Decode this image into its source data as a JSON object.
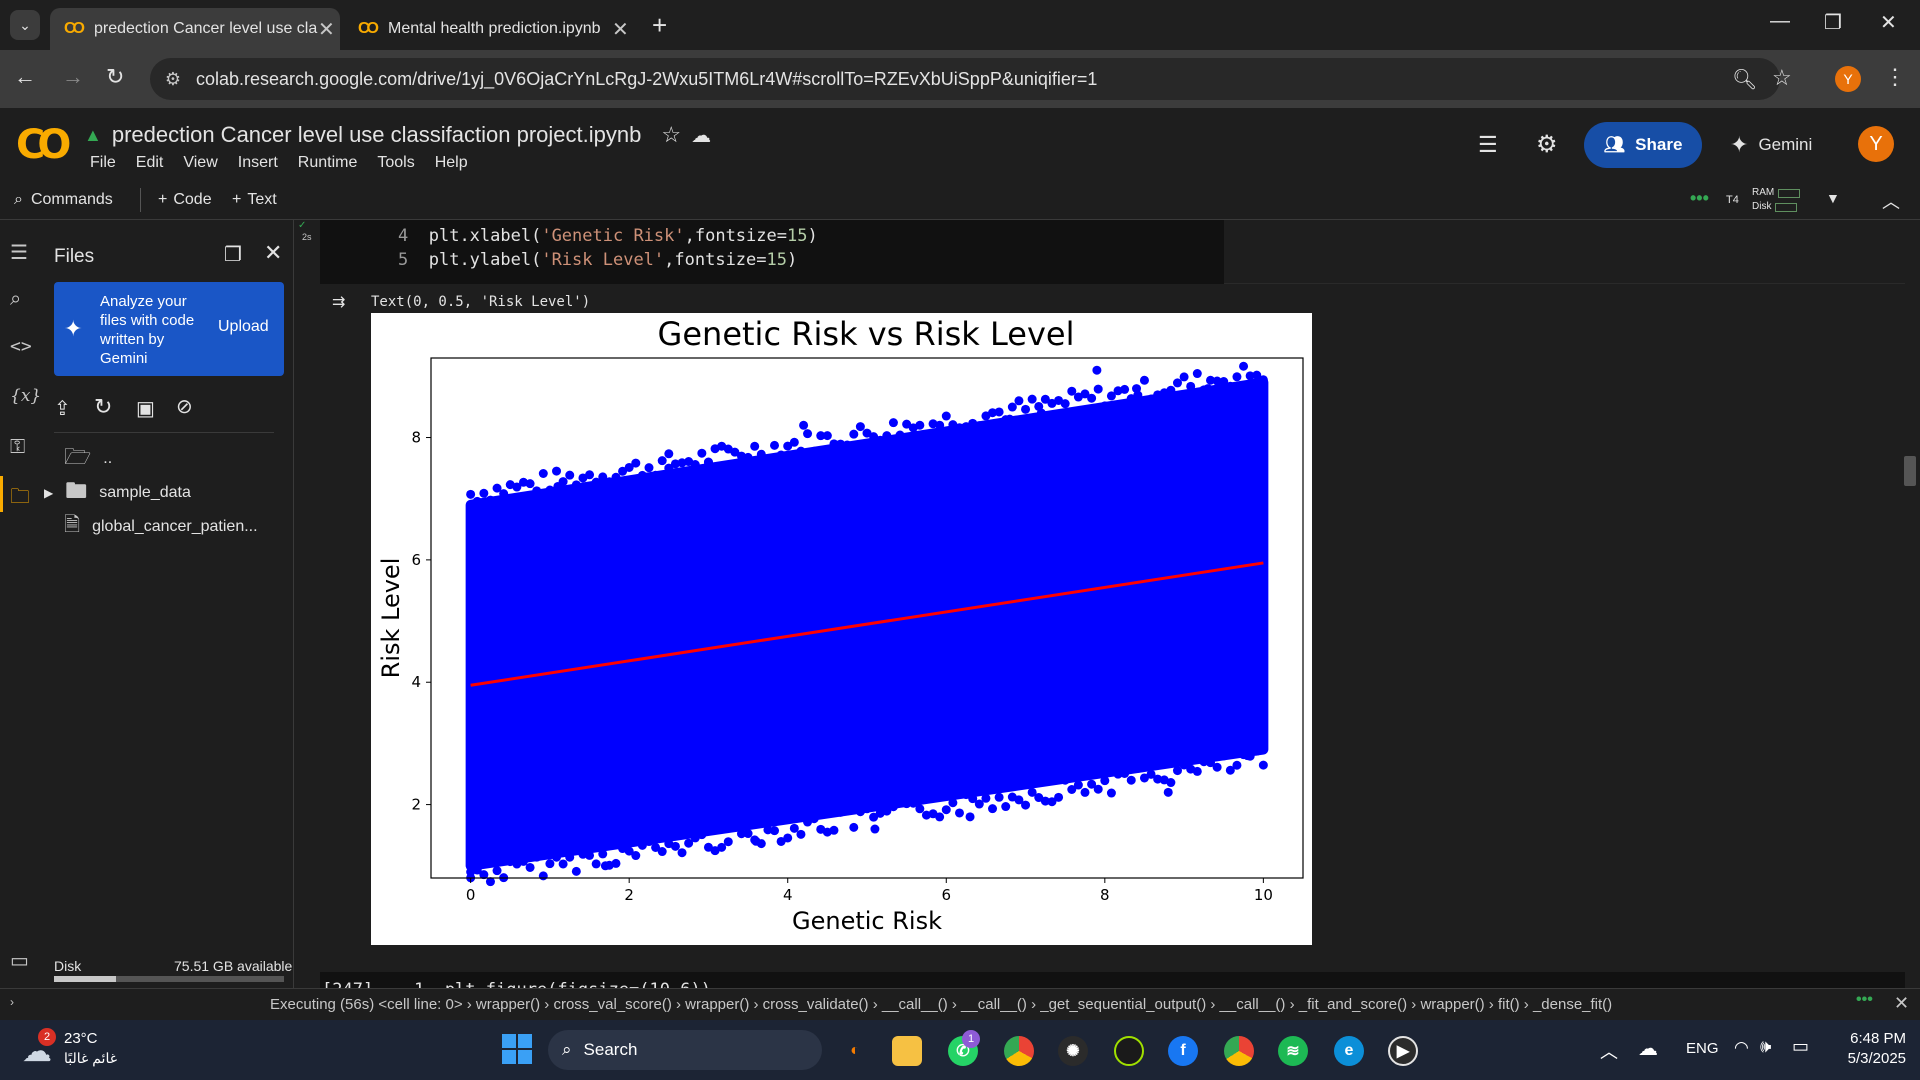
{
  "browser": {
    "tabs": [
      {
        "label": "predection Cancer level use cla",
        "active": true
      },
      {
        "label": "Mental health prediction.ipynb",
        "active": false
      }
    ],
    "new_tab": "+",
    "url": "colab.research.google.com/drive/1yj_0V6OjaCrYnLcRgJ-2Wxu5ITM6Lr4W#scrollTo=RZEvXbUiSppP&uniqifier=1",
    "profile_initial": "Y"
  },
  "colab": {
    "logo": "CO",
    "notebook_title": "predection Cancer level use classifaction project.ipynb",
    "menu": [
      "File",
      "Edit",
      "View",
      "Insert",
      "Runtime",
      "Tools",
      "Help"
    ],
    "share_label": "Share",
    "gemini_label": "Gemini",
    "user_initial": "Y",
    "commands_label": "Commands",
    "add_code_label": "Code",
    "add_text_label": "Text",
    "runtime_type": "T4",
    "ram_label": "RAM",
    "disk_label": "Disk"
  },
  "files_panel": {
    "title": "Files",
    "gemini_banner": "Analyze your files with code written by Gemini",
    "upload_label": "Upload",
    "items": [
      {
        "name": ".."
      },
      {
        "name": "sample_data"
      },
      {
        "name": "global_cancer_patien..."
      }
    ],
    "disk_label": "Disk",
    "disk_available": "75.51 GB available"
  },
  "cell": {
    "exec_time": "2s",
    "lines": [
      {
        "num": "4",
        "pre": "plt.xlabel(",
        "str": "'Genetic Risk'",
        "post": ",fontsize=",
        "val": "15",
        "end": ")"
      },
      {
        "num": "5",
        "pre": "plt.ylabel(",
        "str": "'Risk Level'",
        "post": ",fontsize=",
        "val": "15",
        "end": ")"
      }
    ],
    "output_text": "Text(0, 0.5, 'Risk Level')",
    "next_cell_partial": "[247]    1  plt.figure(figsize=(10,6))"
  },
  "chart_data": {
    "type": "scatter",
    "title": "Genetic Risk vs Risk Level",
    "xlabel": "Genetic Risk",
    "ylabel": "Risk Level",
    "xlim": [
      -0.5,
      10.5
    ],
    "ylim": [
      0.8,
      9.3
    ],
    "xticks": [
      0,
      2,
      4,
      6,
      8,
      10
    ],
    "yticks": [
      2,
      4,
      6,
      8
    ],
    "scatter_color": "#0000ff",
    "regression_color": "#ff0000",
    "regression_line": {
      "x": [
        0,
        10
      ],
      "y": [
        3.95,
        5.95
      ]
    },
    "band": {
      "x": [
        0,
        10
      ],
      "upper": [
        6.9,
        8.9
      ],
      "lower": [
        1.0,
        2.9
      ]
    },
    "outliers": [
      {
        "x": 7.9,
        "y": 9.1
      },
      {
        "x": 6.8,
        "y": 8.3
      },
      {
        "x": 8.4,
        "y": 8.8
      },
      {
        "x": 9.3,
        "y": 8.8
      },
      {
        "x": 1.7,
        "y": 1.0
      },
      {
        "x": 0.0,
        "y": 0.9
      },
      {
        "x": 8.8,
        "y": 2.2
      },
      {
        "x": 5.1,
        "y": 1.6
      },
      {
        "x": 3.6,
        "y": 1.4
      },
      {
        "x": 4.2,
        "y": 8.2
      },
      {
        "x": 1.1,
        "y": 7.2
      },
      {
        "x": 7.2,
        "y": 8.4
      },
      {
        "x": 2.5,
        "y": 7.5
      },
      {
        "x": 9.8,
        "y": 2.8
      },
      {
        "x": 6.3,
        "y": 1.8
      },
      {
        "x": 3.0,
        "y": 7.6
      }
    ]
  },
  "status": {
    "executing": "Executing (56s)  <cell line: 0> › wrapper() › cross_val_score() › wrapper() › cross_validate() › __call__() › __call__() › _get_sequential_output() › __call__() › _fit_and_score() › wrapper() › fit() › _dense_fit()"
  },
  "taskbar": {
    "weather_temp": "23°C",
    "weather_desc": "غائم غالبًا",
    "weather_badge": "2",
    "search_label": "Search",
    "whatsapp_badge": "1",
    "language": "ENG",
    "time": "6:48 PM",
    "date": "5/3/2025"
  }
}
